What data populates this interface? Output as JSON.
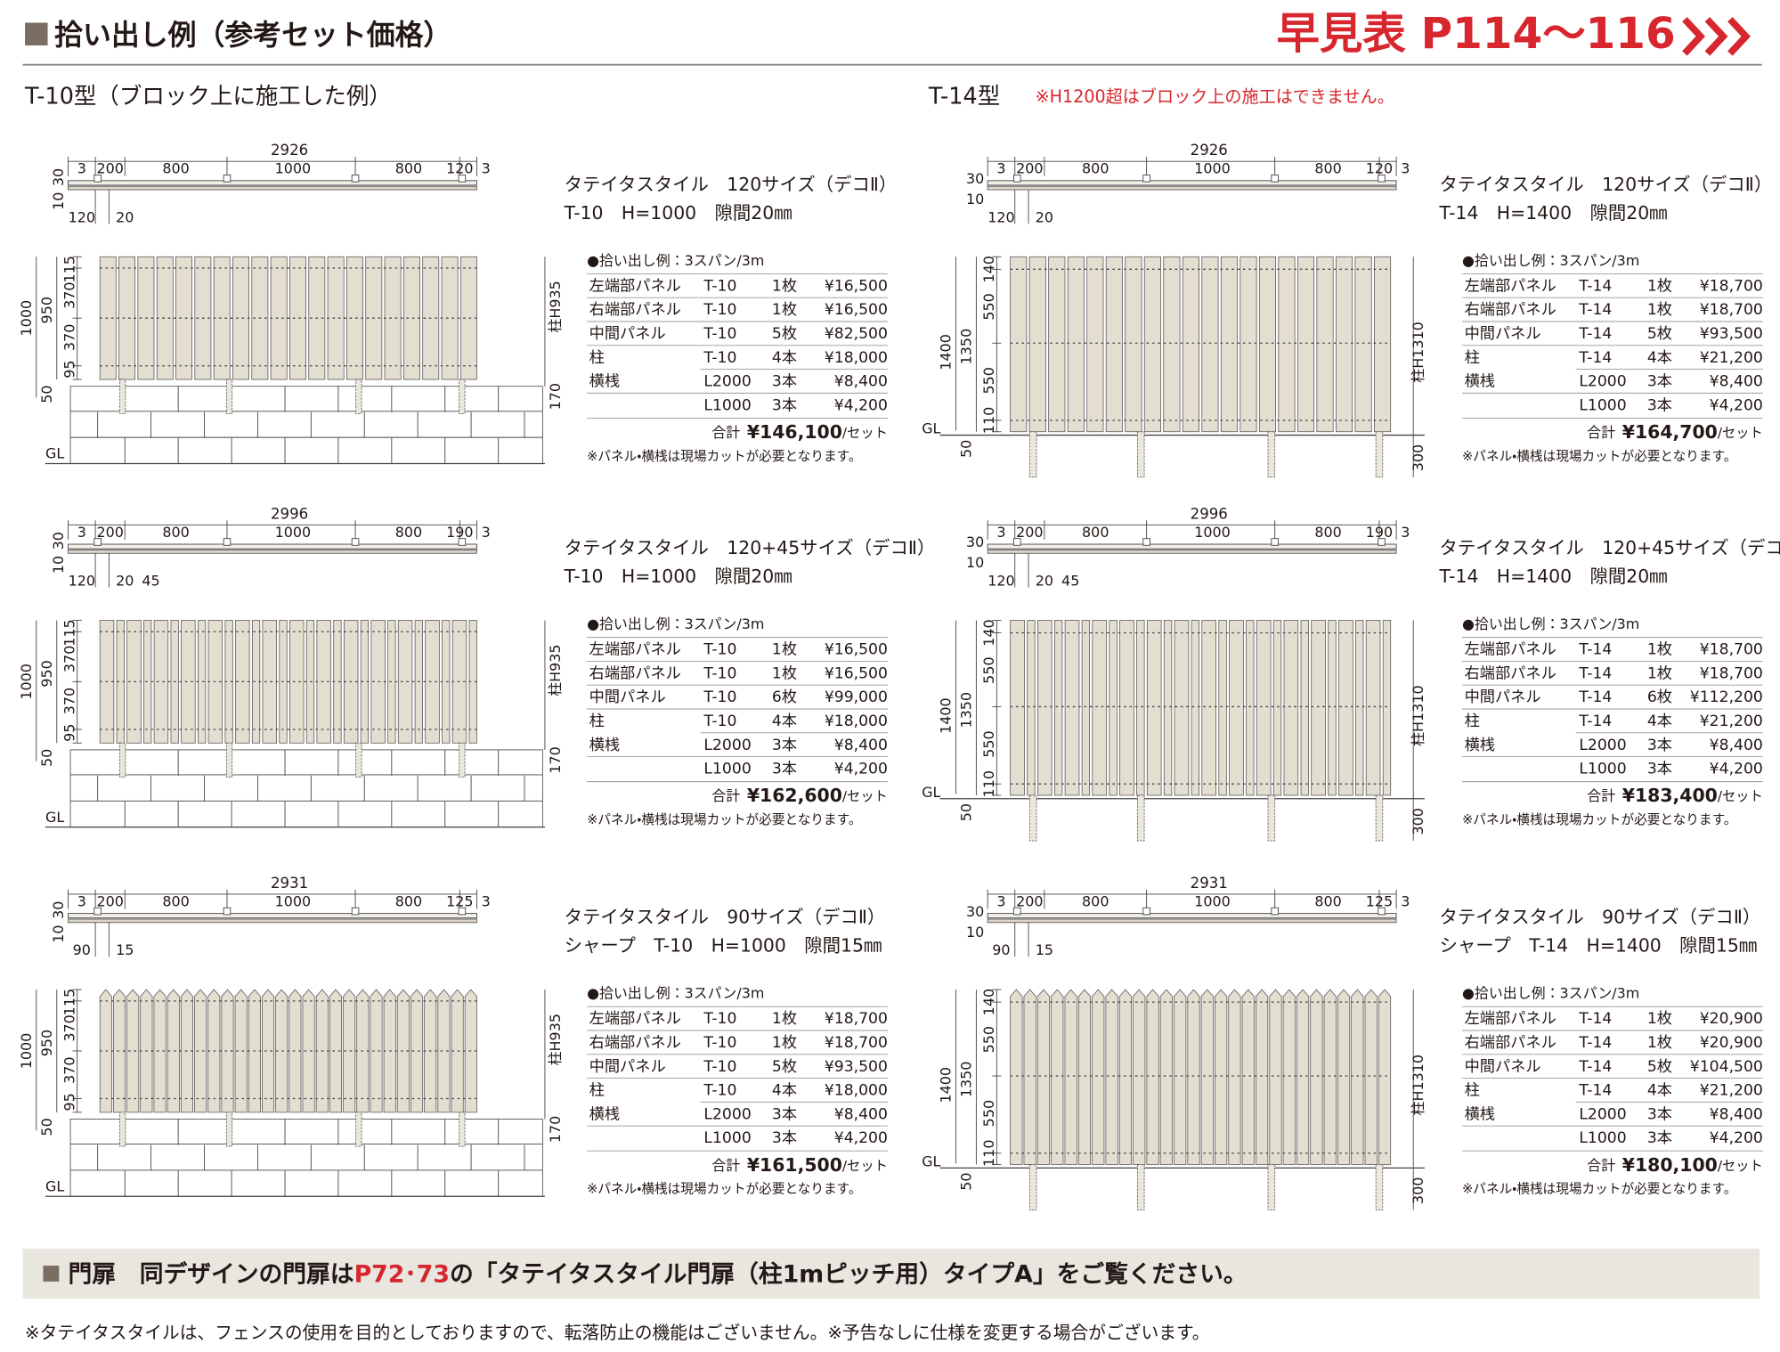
{
  "header": {
    "title": "拾い出し例（参考セット価格）",
    "quick_ref": "早見表 P114～116"
  },
  "columns": [
    {
      "heading": "T-10型（ブロック上に施工した例）",
      "blocks": [
        {
          "plan": {
            "total": "2926",
            "spans": [
              "3",
              "200",
              "800",
              "1000",
              "800",
              "120",
              "3"
            ],
            "side": [
              "10",
              "30"
            ],
            "bottom": [
              "120",
              "20"
            ]
          },
          "elevation": {
            "height": "1000",
            "inner": "950",
            "segments": [
              "115",
              "370",
              "370",
              "95"
            ],
            "base": "50",
            "post": "柱H935",
            "block": "170",
            "gl": "GL"
          },
          "title": [
            "タテイタスタイル　120サイズ（デコⅡ）",
            "T-10　H=1000　隙間20㎜"
          ],
          "subtitle": "●拾い出し例：3スパン/3m",
          "rows": [
            {
              "name": "左端部パネル",
              "model": "T-10",
              "qty": "1枚",
              "price": "¥16,500"
            },
            {
              "name": "右端部パネル",
              "model": "T-10",
              "qty": "1枚",
              "price": "¥16,500"
            },
            {
              "name": "中間パネル",
              "model": "T-10",
              "qty": "5枚",
              "price": "¥82,500"
            },
            {
              "name": "柱",
              "model": "T-10",
              "qty": "4本",
              "price": "¥18,000"
            },
            {
              "name": "横桟",
              "model": "L2000",
              "qty": "3本",
              "price": "¥8,400"
            },
            {
              "model": "L1000",
              "qty": "3本",
              "price": "¥4,200"
            }
          ],
          "total": {
            "label": "合計",
            "amount": "¥146,100",
            "unit": "/セット"
          },
          "note": "※パネル・横桟は現場カットが必要となります。"
        },
        {
          "plan": {
            "total": "2996",
            "spans": [
              "3",
              "200",
              "800",
              "1000",
              "800",
              "190",
              "3"
            ],
            "side": [
              "10",
              "30"
            ],
            "bottom": [
              "120",
              "20",
              "45"
            ]
          },
          "elevation": {
            "height": "1000",
            "inner": "950",
            "segments": [
              "115",
              "370",
              "370",
              "95"
            ],
            "base": "50",
            "post": "柱H935",
            "block": "170",
            "gl": "GL"
          },
          "title": [
            "タテイタスタイル　120+45サイズ（デコⅡ）",
            "T-10　H=1000　隙間20㎜"
          ],
          "subtitle": "●拾い出し例：3スパン/3m",
          "rows": [
            {
              "name": "左端部パネル",
              "model": "T-10",
              "qty": "1枚",
              "price": "¥16,500"
            },
            {
              "name": "右端部パネル",
              "model": "T-10",
              "qty": "1枚",
              "price": "¥16,500"
            },
            {
              "name": "中間パネル",
              "model": "T-10",
              "qty": "6枚",
              "price": "¥99,000"
            },
            {
              "name": "柱",
              "model": "T-10",
              "qty": "4本",
              "price": "¥18,000"
            },
            {
              "name": "横桟",
              "model": "L2000",
              "qty": "3本",
              "price": "¥8,400"
            },
            {
              "model": "L1000",
              "qty": "3本",
              "price": "¥4,200"
            }
          ],
          "total": {
            "label": "合計",
            "amount": "¥162,600",
            "unit": "/セット"
          },
          "note": "※パネル・横桟は現場カットが必要となります。"
        },
        {
          "plan": {
            "total": "2931",
            "spans": [
              "3",
              "200",
              "800",
              "1000",
              "800",
              "125",
              "3"
            ],
            "side": [
              "10",
              "30"
            ],
            "bottom": [
              "90",
              "15"
            ]
          },
          "elevation": {
            "height": "1000",
            "inner": "950",
            "segments": [
              "115",
              "370",
              "370",
              "95"
            ],
            "base": "50",
            "post": "柱H935",
            "block": "170",
            "gl": "GL"
          },
          "title": [
            "タテイタスタイル　90サイズ（デコⅡ）",
            "シャープ　T-10　H=1000　隙間15㎜"
          ],
          "subtitle": "●拾い出し例：3スパン/3m",
          "rows": [
            {
              "name": "左端部パネル",
              "model": "T-10",
              "qty": "1枚",
              "price": "¥18,700"
            },
            {
              "name": "右端部パネル",
              "model": "T-10",
              "qty": "1枚",
              "price": "¥18,700"
            },
            {
              "name": "中間パネル",
              "model": "T-10",
              "qty": "5枚",
              "price": "¥93,500"
            },
            {
              "name": "柱",
              "model": "T-10",
              "qty": "4本",
              "price": "¥18,000"
            },
            {
              "name": "横桟",
              "model": "L2000",
              "qty": "3本",
              "price": "¥8,400"
            },
            {
              "model": "L1000",
              "qty": "3本",
              "price": "¥4,200"
            }
          ],
          "total": {
            "label": "合計",
            "amount": "¥161,500",
            "unit": "/セット"
          },
          "note": "※パネル・横桟は現場カットが必要となります。"
        }
      ]
    },
    {
      "heading": "T-14型",
      "note": "※H1200超はブロック上の施工はできません。",
      "blocks": [
        {
          "plan": {
            "total": "2926",
            "spans": [
              "3",
              "200",
              "800",
              "1000",
              "800",
              "120",
              "3"
            ],
            "side": [
              "30",
              "10"
            ],
            "bottom": [
              "120",
              "20"
            ]
          },
          "elevation": {
            "height": "1400",
            "inner": "1350",
            "segments": [
              "140",
              "550",
              "550",
              "110"
            ],
            "base": "50",
            "post": "柱H1310",
            "depth": "300",
            "gl": "GL"
          },
          "title": [
            "タテイタスタイル　120サイズ（デコⅡ）",
            "T-14　H=1400　隙間20㎜"
          ],
          "subtitle": "●拾い出し例：3スパン/3m",
          "rows": [
            {
              "name": "左端部パネル",
              "model": "T-14",
              "qty": "1枚",
              "price": "¥18,700"
            },
            {
              "name": "右端部パネル",
              "model": "T-14",
              "qty": "1枚",
              "price": "¥18,700"
            },
            {
              "name": "中間パネル",
              "model": "T-14",
              "qty": "5枚",
              "price": "¥93,500"
            },
            {
              "name": "柱",
              "model": "T-14",
              "qty": "4本",
              "price": "¥21,200"
            },
            {
              "name": "横桟",
              "model": "L2000",
              "qty": "3本",
              "price": "¥8,400"
            },
            {
              "model": "L1000",
              "qty": "3本",
              "price": "¥4,200"
            }
          ],
          "total": {
            "label": "合計",
            "amount": "¥164,700",
            "unit": "/セット"
          },
          "note": "※パネル・横桟は現場カットが必要となります。"
        },
        {
          "plan": {
            "total": "2996",
            "spans": [
              "3",
              "200",
              "800",
              "1000",
              "800",
              "190",
              "3"
            ],
            "side": [
              "30",
              "10"
            ],
            "bottom": [
              "120",
              "20",
              "45"
            ]
          },
          "elevation": {
            "height": "1400",
            "inner": "1350",
            "segments": [
              "140",
              "550",
              "550",
              "110"
            ],
            "base": "50",
            "post": "柱H1310",
            "depth": "300",
            "gl": "GL"
          },
          "title": [
            "タテイタスタイル　120+45サイズ（デコⅡ）",
            "T-14　H=1400　隙間20㎜"
          ],
          "subtitle": "●拾い出し例：3スパン/3m",
          "rows": [
            {
              "name": "左端部パネル",
              "model": "T-14",
              "qty": "1枚",
              "price": "¥18,700"
            },
            {
              "name": "右端部パネル",
              "model": "T-14",
              "qty": "1枚",
              "price": "¥18,700"
            },
            {
              "name": "中間パネル",
              "model": "T-14",
              "qty": "6枚",
              "price": "¥112,200"
            },
            {
              "name": "柱",
              "model": "T-14",
              "qty": "4本",
              "price": "¥21,200"
            },
            {
              "name": "横桟",
              "model": "L2000",
              "qty": "3本",
              "price": "¥8,400"
            },
            {
              "model": "L1000",
              "qty": "3本",
              "price": "¥4,200"
            }
          ],
          "total": {
            "label": "合計",
            "amount": "¥183,400",
            "unit": "/セット"
          },
          "note": "※パネル・横桟は現場カットが必要となります。"
        },
        {
          "plan": {
            "total": "2931",
            "spans": [
              "3",
              "200",
              "800",
              "1000",
              "800",
              "125",
              "3"
            ],
            "side": [
              "30",
              "10"
            ],
            "bottom": [
              "90",
              "15"
            ]
          },
          "elevation": {
            "height": "1400",
            "inner": "1350",
            "segments": [
              "140",
              "550",
              "550",
              "110"
            ],
            "base": "50",
            "post": "柱H1310",
            "depth": "300",
            "gl": "GL"
          },
          "title": [
            "タテイタスタイル　90サイズ（デコⅡ）",
            "シャープ　T-14　H=1400　隙間15㎜"
          ],
          "subtitle": "●拾い出し例：3スパン/3m",
          "rows": [
            {
              "name": "左端部パネル",
              "model": "T-14",
              "qty": "1枚",
              "price": "¥20,900"
            },
            {
              "name": "右端部パネル",
              "model": "T-14",
              "qty": "1枚",
              "price": "¥20,900"
            },
            {
              "name": "中間パネル",
              "model": "T-14",
              "qty": "5枚",
              "price": "¥104,500"
            },
            {
              "name": "柱",
              "model": "T-14",
              "qty": "4本",
              "price": "¥21,200"
            },
            {
              "name": "横桟",
              "model": "L2000",
              "qty": "3本",
              "price": "¥8,400"
            },
            {
              "model": "L1000",
              "qty": "3本",
              "price": "¥4,200"
            }
          ],
          "total": {
            "label": "合計",
            "amount": "¥180,100",
            "unit": "/セット"
          },
          "note": "※パネル・横桟は現場カットが必要となります。"
        }
      ]
    }
  ],
  "footer": {
    "banner": [
      "門扉　同デザインの門扉は",
      "P72･73",
      "の「タテイタスタイル門扉（柱1mピッチ用）タイプA」をご覧ください。"
    ],
    "note": "※タテイタスタイルは、フェンスの使用を目的としておりますので、転落防止の機能はございません。※予告なしに仕様を変更する場合がございます。"
  }
}
